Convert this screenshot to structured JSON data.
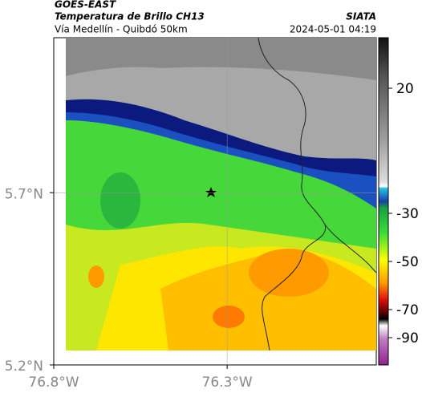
{
  "header": {
    "source": "GOES-EAST",
    "title": "Temperatura de Brillo CH13",
    "subtitle": "Vía Medellín - Quibdó 50km",
    "agency": "SIATA",
    "datetime": "2024-05-01 04:19"
  },
  "map": {
    "lat_range": [
      5.2,
      6.15
    ],
    "lon_range": [
      -76.8,
      -75.87
    ],
    "lat_ticks": [
      {
        "value": 5.7,
        "label": "5.7°N"
      },
      {
        "value": 5.2,
        "label": "5.2°N"
      }
    ],
    "lon_ticks": [
      {
        "value": -76.8,
        "label": "76.8°W"
      },
      {
        "value": -76.3,
        "label": "76.3°W"
      }
    ]
  },
  "colorbar": {
    "ticks": [
      20,
      -30,
      -50,
      -70,
      -90
    ]
  }
}
